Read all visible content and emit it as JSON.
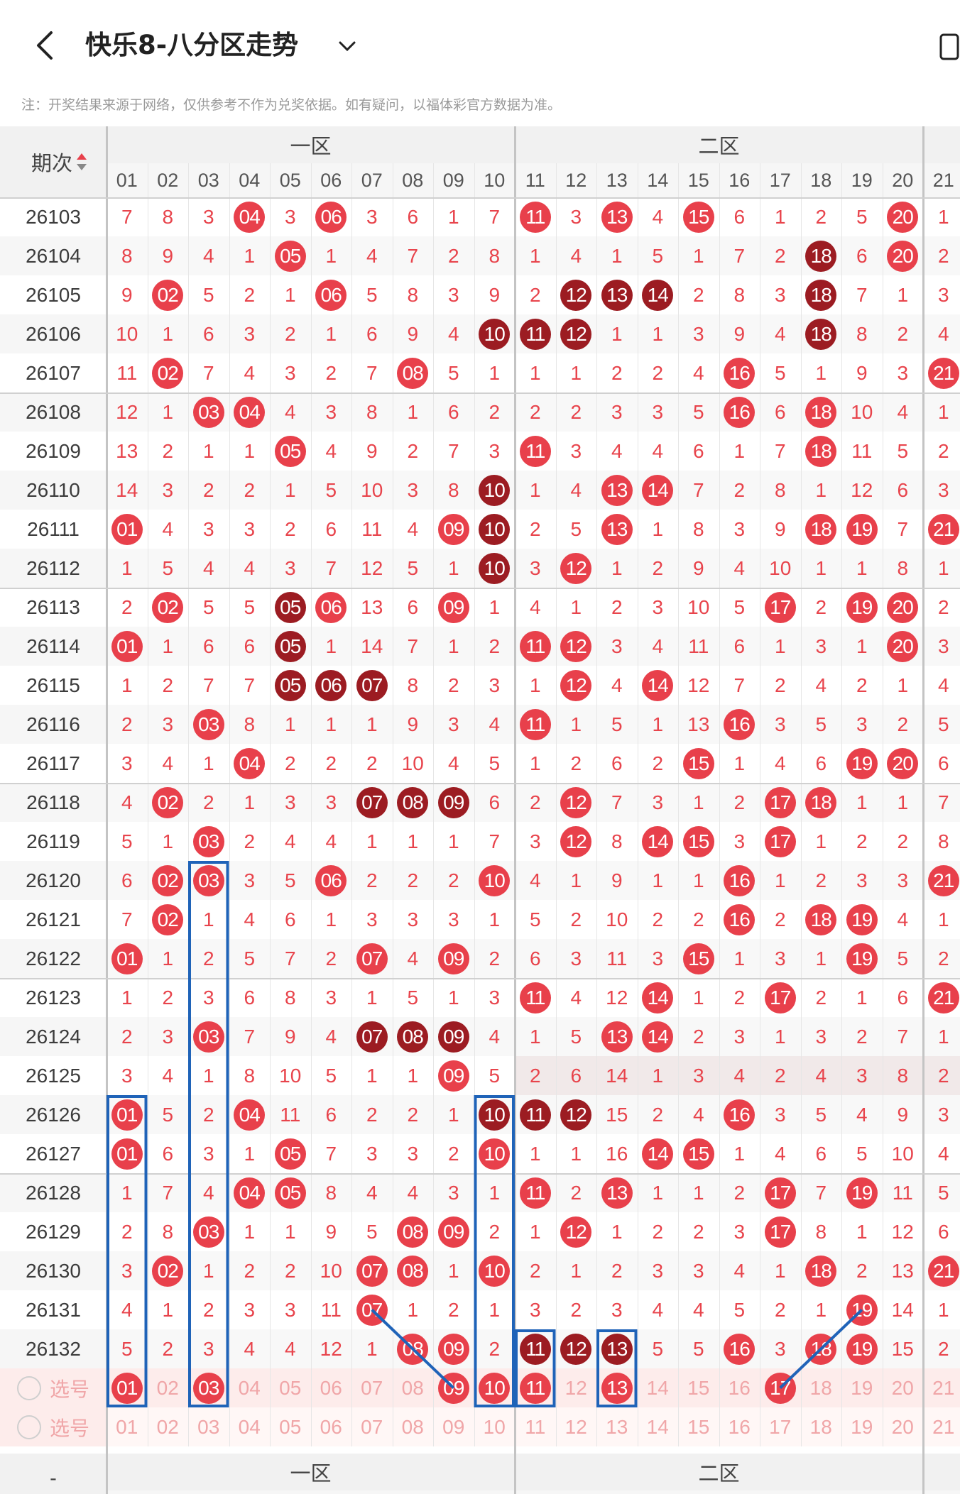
{
  "header": {
    "title": "快乐8-八分区走势",
    "note": "注：开奖结果来源于网络，仅供参考不作为兑奖依据。如有疑问，以福体彩官方数据为准。"
  },
  "table": {
    "period_header": "期次",
    "zones": [
      "一区",
      "二区"
    ],
    "columns": [
      "01",
      "02",
      "03",
      "04",
      "05",
      "06",
      "07",
      "08",
      "09",
      "10",
      "11",
      "12",
      "13",
      "14",
      "15",
      "16",
      "17",
      "18",
      "19",
      "20",
      "21"
    ],
    "rows": [
      {
        "p": "26103",
        "v": [
          "7",
          "8",
          "3",
          "04",
          "3",
          "06",
          "3",
          "6",
          "1",
          "7",
          "11",
          "3",
          "13",
          "4",
          "15",
          "6",
          "1",
          "2",
          "5",
          "20",
          "1"
        ]
      },
      {
        "p": "26104",
        "v": [
          "8",
          "9",
          "4",
          "1",
          "05",
          "1",
          "4",
          "7",
          "2",
          "8",
          "1",
          "4",
          "1",
          "5",
          "1",
          "7",
          "2",
          "18",
          "6",
          "20",
          "2"
        ]
      },
      {
        "p": "26105",
        "v": [
          "9",
          "02",
          "5",
          "2",
          "1",
          "06",
          "5",
          "8",
          "3",
          "9",
          "2",
          "12",
          "13",
          "14",
          "2",
          "8",
          "3",
          "18",
          "7",
          "1",
          "3"
        ]
      },
      {
        "p": "26106",
        "v": [
          "10",
          "1",
          "6",
          "3",
          "2",
          "1",
          "6",
          "9",
          "4",
          "10",
          "11",
          "12",
          "1",
          "1",
          "3",
          "9",
          "4",
          "18",
          "8",
          "2",
          "4"
        ]
      },
      {
        "p": "26107",
        "v": [
          "11",
          "02",
          "7",
          "4",
          "3",
          "2",
          "7",
          "08",
          "5",
          "1",
          "1",
          "1",
          "2",
          "2",
          "4",
          "16",
          "5",
          "1",
          "9",
          "3",
          "21"
        ]
      },
      {
        "p": "26108",
        "v": [
          "12",
          "1",
          "03",
          "04",
          "4",
          "3",
          "8",
          "1",
          "6",
          "2",
          "2",
          "2",
          "3",
          "3",
          "5",
          "16",
          "6",
          "18",
          "10",
          "4",
          "1"
        ]
      },
      {
        "p": "26109",
        "v": [
          "13",
          "2",
          "1",
          "1",
          "05",
          "4",
          "9",
          "2",
          "7",
          "3",
          "11",
          "3",
          "4",
          "4",
          "6",
          "1",
          "7",
          "18",
          "11",
          "5",
          "2"
        ]
      },
      {
        "p": "26110",
        "v": [
          "14",
          "3",
          "2",
          "2",
          "1",
          "5",
          "10",
          "3",
          "8",
          "10",
          "1",
          "4",
          "13",
          "14",
          "7",
          "2",
          "8",
          "1",
          "12",
          "6",
          "3"
        ]
      },
      {
        "p": "26111",
        "v": [
          "01",
          "4",
          "3",
          "3",
          "2",
          "6",
          "11",
          "4",
          "09",
          "10",
          "2",
          "5",
          "13",
          "1",
          "8",
          "3",
          "9",
          "18",
          "19",
          "7",
          "21"
        ]
      },
      {
        "p": "26112",
        "v": [
          "1",
          "5",
          "4",
          "4",
          "3",
          "7",
          "12",
          "5",
          "1",
          "10",
          "3",
          "12",
          "1",
          "2",
          "9",
          "4",
          "10",
          "1",
          "1",
          "8",
          "1"
        ]
      },
      {
        "p": "26113",
        "v": [
          "2",
          "02",
          "5",
          "5",
          "05",
          "06",
          "13",
          "6",
          "09",
          "1",
          "4",
          "1",
          "2",
          "3",
          "10",
          "5",
          "17",
          "2",
          "19",
          "20",
          "2"
        ]
      },
      {
        "p": "26114",
        "v": [
          "01",
          "1",
          "6",
          "6",
          "05",
          "1",
          "14",
          "7",
          "1",
          "2",
          "11",
          "12",
          "3",
          "4",
          "11",
          "6",
          "1",
          "3",
          "1",
          "20",
          "3"
        ]
      },
      {
        "p": "26115",
        "v": [
          "1",
          "2",
          "7",
          "7",
          "05",
          "06",
          "07",
          "8",
          "2",
          "3",
          "1",
          "12",
          "4",
          "14",
          "12",
          "7",
          "2",
          "4",
          "2",
          "1",
          "4"
        ]
      },
      {
        "p": "26116",
        "v": [
          "2",
          "3",
          "03",
          "8",
          "1",
          "1",
          "1",
          "9",
          "3",
          "4",
          "11",
          "1",
          "5",
          "1",
          "13",
          "16",
          "3",
          "5",
          "3",
          "2",
          "5"
        ]
      },
      {
        "p": "26117",
        "v": [
          "3",
          "4",
          "1",
          "04",
          "2",
          "2",
          "2",
          "10",
          "4",
          "5",
          "1",
          "2",
          "6",
          "2",
          "15",
          "1",
          "4",
          "6",
          "19",
          "20",
          "6"
        ]
      },
      {
        "p": "26118",
        "v": [
          "4",
          "02",
          "2",
          "1",
          "3",
          "3",
          "07",
          "08",
          "09",
          "6",
          "2",
          "12",
          "7",
          "3",
          "1",
          "2",
          "17",
          "18",
          "1",
          "1",
          "7"
        ]
      },
      {
        "p": "26119",
        "v": [
          "5",
          "1",
          "03",
          "2",
          "4",
          "4",
          "1",
          "1",
          "1",
          "7",
          "3",
          "12",
          "8",
          "14",
          "15",
          "3",
          "17",
          "1",
          "2",
          "2",
          "8"
        ]
      },
      {
        "p": "26120",
        "v": [
          "6",
          "02",
          "03",
          "3",
          "5",
          "06",
          "2",
          "2",
          "2",
          "10",
          "4",
          "1",
          "9",
          "1",
          "1",
          "16",
          "1",
          "2",
          "3",
          "3",
          "21"
        ]
      },
      {
        "p": "26121",
        "v": [
          "7",
          "02",
          "1",
          "4",
          "6",
          "1",
          "3",
          "3",
          "3",
          "1",
          "5",
          "2",
          "10",
          "2",
          "2",
          "16",
          "2",
          "18",
          "19",
          "4",
          "1"
        ]
      },
      {
        "p": "26122",
        "v": [
          "01",
          "1",
          "2",
          "5",
          "7",
          "2",
          "07",
          "4",
          "09",
          "2",
          "6",
          "3",
          "11",
          "3",
          "15",
          "1",
          "3",
          "1",
          "19",
          "5",
          "2"
        ]
      },
      {
        "p": "26123",
        "v": [
          "1",
          "2",
          "3",
          "6",
          "8",
          "3",
          "1",
          "5",
          "1",
          "3",
          "11",
          "4",
          "12",
          "14",
          "1",
          "2",
          "17",
          "2",
          "1",
          "6",
          "21"
        ]
      },
      {
        "p": "26124",
        "v": [
          "2",
          "3",
          "03",
          "7",
          "9",
          "4",
          "07",
          "08",
          "09",
          "4",
          "1",
          "5",
          "13",
          "14",
          "2",
          "3",
          "1",
          "3",
          "2",
          "7",
          "1"
        ]
      },
      {
        "p": "26125",
        "v": [
          "3",
          "4",
          "1",
          "8",
          "10",
          "5",
          "1",
          "1",
          "09",
          "5",
          "2",
          "6",
          "14",
          "1",
          "3",
          "4",
          "2",
          "4",
          "3",
          "8",
          "2"
        ]
      },
      {
        "p": "26126",
        "v": [
          "01",
          "5",
          "2",
          "04",
          "11",
          "6",
          "2",
          "2",
          "1",
          "10",
          "11",
          "12",
          "15",
          "2",
          "4",
          "16",
          "3",
          "5",
          "4",
          "9",
          "3"
        ]
      },
      {
        "p": "26127",
        "v": [
          "01",
          "6",
          "3",
          "1",
          "05",
          "7",
          "3",
          "3",
          "2",
          "10",
          "1",
          "1",
          "16",
          "14",
          "15",
          "1",
          "4",
          "6",
          "5",
          "10",
          "4"
        ]
      },
      {
        "p": "26128",
        "v": [
          "1",
          "7",
          "4",
          "04",
          "05",
          "8",
          "4",
          "4",
          "3",
          "1",
          "11",
          "2",
          "13",
          "1",
          "1",
          "2",
          "17",
          "7",
          "19",
          "11",
          "5"
        ]
      },
      {
        "p": "26129",
        "v": [
          "2",
          "8",
          "03",
          "1",
          "1",
          "9",
          "5",
          "08",
          "09",
          "2",
          "1",
          "12",
          "1",
          "2",
          "2",
          "3",
          "17",
          "8",
          "1",
          "12",
          "6"
        ]
      },
      {
        "p": "26130",
        "v": [
          "3",
          "02",
          "1",
          "2",
          "2",
          "10",
          "07",
          "08",
          "1",
          "10",
          "2",
          "1",
          "2",
          "3",
          "3",
          "4",
          "1",
          "18",
          "2",
          "13",
          "21"
        ]
      },
      {
        "p": "26131",
        "v": [
          "4",
          "1",
          "2",
          "3",
          "3",
          "11",
          "07",
          "1",
          "2",
          "1",
          "3",
          "2",
          "3",
          "4",
          "4",
          "5",
          "2",
          "1",
          "19",
          "14",
          "1"
        ]
      },
      {
        "p": "26132",
        "v": [
          "5",
          "2",
          "3",
          "4",
          "4",
          "12",
          "1",
          "08",
          "09",
          "2",
          "11",
          "12",
          "13",
          "5",
          "5",
          "16",
          "3",
          "18",
          "19",
          "15",
          "2"
        ]
      }
    ],
    "dark_cells": [
      "26106-10",
      "26106-11",
      "26106-12",
      "26105-12",
      "26105-13",
      "26105-14",
      "26104-18",
      "26105-18",
      "26106-18",
      "26110-10",
      "26111-10",
      "26112-10",
      "26113-05",
      "26114-05",
      "26115-05",
      "26115-06",
      "26115-07",
      "26118-07",
      "26118-08",
      "26118-09",
      "26124-07",
      "26124-08",
      "26124-09",
      "26126-10",
      "26126-11",
      "26126-12",
      "26132-11",
      "26132-12",
      "26132-13"
    ],
    "select_rows": [
      {
        "label": "选号",
        "v": [
          "01",
          "02",
          "03",
          "04",
          "05",
          "06",
          "07",
          "08",
          "09",
          "10",
          "11",
          "12",
          "13",
          "14",
          "15",
          "16",
          "17",
          "18",
          "19",
          "20",
          "21"
        ],
        "selected": [
          "01",
          "03",
          "09",
          "10",
          "11",
          "13",
          "17"
        ]
      },
      {
        "label": "选号",
        "v": [
          "01",
          "02",
          "03",
          "04",
          "05",
          "06",
          "07",
          "08",
          "09",
          "10",
          "11",
          "12",
          "13",
          "14",
          "15",
          "16",
          "17",
          "18",
          "19",
          "20",
          "21"
        ],
        "selected": []
      }
    ],
    "footer_period": "-"
  },
  "colors": {
    "ball_red": "#e8404b",
    "ball_dark": "#9c1c22",
    "number_red": "#e8444c",
    "annotation_blue": "#1f63b8"
  }
}
